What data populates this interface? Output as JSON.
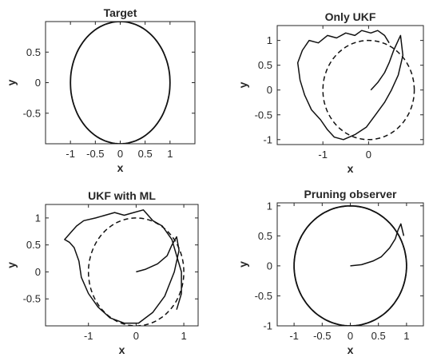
{
  "chart_data": [
    {
      "type": "line",
      "title": "Target",
      "xlabel": "x",
      "ylabel": "y",
      "xlim": [
        -1.5,
        1.5
      ],
      "ylim": [
        -1,
        1
      ],
      "xticks": [
        "-1",
        "-0.5",
        "0",
        "0.5",
        "1"
      ],
      "xtick_values": [
        -1,
        -0.5,
        0,
        0.5,
        1
      ],
      "yticks": [
        "0.5",
        "0",
        "-0.5"
      ],
      "ytick_values": [
        0.5,
        0,
        -0.5
      ],
      "series": [
        {
          "kind": "circle",
          "style": "solid",
          "cx": 0,
          "cy": 0,
          "r": 1
        }
      ]
    },
    {
      "type": "line",
      "title": "Only UKF",
      "xlabel": "x",
      "ylabel": "y",
      "xlim": [
        -2,
        1.2
      ],
      "ylim": [
        -1.1,
        1.3
      ],
      "xticks": [
        "-1",
        "0"
      ],
      "xtick_values": [
        -1,
        0
      ],
      "yticks": [
        "1",
        "0.5",
        "0",
        "-0.5",
        "-1"
      ],
      "ytick_values": [
        1,
        0.5,
        0,
        -0.5,
        -1
      ],
      "series": [
        {
          "kind": "circle",
          "style": "dashed",
          "cx": 0,
          "cy": 0,
          "r": 1
        },
        {
          "kind": "path",
          "style": "solid",
          "x": [
            0.05,
            0.2,
            0.35,
            0.45,
            0.55,
            0.65,
            0.7,
            0.75,
            0.65,
            0.5,
            0.35,
            0.15,
            -0.05,
            -0.3,
            -0.55,
            -0.75,
            -0.9,
            -1.05,
            -1.25,
            -1.4,
            -1.5,
            -1.55,
            -1.45,
            -1.3,
            -1.1,
            -0.9,
            -0.7,
            -0.5,
            -0.3,
            -0.15,
            0.05,
            0.2,
            0.35,
            0.45
          ],
          "y": [
            0,
            0.15,
            0.35,
            0.55,
            0.8,
            1.0,
            1.1,
            0.7,
            0.3,
            0.0,
            -0.25,
            -0.5,
            -0.75,
            -0.9,
            -1.0,
            -0.95,
            -0.8,
            -0.6,
            -0.4,
            -0.1,
            0.2,
            0.55,
            0.8,
            1.0,
            0.95,
            1.1,
            1.05,
            1.15,
            1.1,
            1.2,
            1.15,
            1.2,
            1.1,
            0.95
          ]
        }
      ]
    },
    {
      "type": "line",
      "title": "UKF with ML",
      "xlabel": "x",
      "ylabel": "y",
      "xlim": [
        -1.9,
        1.3
      ],
      "ylim": [
        -1,
        1.25
      ],
      "xticks": [
        "-1",
        "0",
        "1"
      ],
      "xtick_values": [
        -1,
        0,
        1
      ],
      "yticks": [
        "1",
        "0.5",
        "0",
        "-0.5"
      ],
      "ytick_values": [
        1,
        0.5,
        0,
        -0.5
      ],
      "series": [
        {
          "kind": "circle",
          "style": "dashed",
          "cx": 0,
          "cy": 0,
          "r": 1
        },
        {
          "kind": "path",
          "style": "solid",
          "x": [
            0,
            0.2,
            0.45,
            0.65,
            0.75,
            0.85,
            0.9,
            0.8,
            0.6,
            0.35,
            0.05,
            -0.25,
            -0.55,
            -0.8,
            -1.0,
            -1.15,
            -1.2,
            -1.3,
            -1.4,
            -1.5,
            -1.35,
            -1.25,
            -1.1,
            -0.85,
            -0.65,
            -0.45,
            -0.25,
            -0.05,
            0.15,
            0.35,
            0.55,
            0.75,
            0.85,
            0.95,
            0.95,
            0.85
          ],
          "y": [
            0,
            0.05,
            0.15,
            0.3,
            0.5,
            0.65,
            0.4,
            0.0,
            -0.45,
            -0.75,
            -0.95,
            -0.95,
            -0.85,
            -0.65,
            -0.4,
            -0.1,
            0.2,
            0.45,
            0.55,
            0.6,
            0.75,
            0.85,
            0.95,
            1.0,
            1.05,
            1.1,
            1.05,
            1.1,
            1.15,
            0.95,
            0.85,
            0.6,
            0.3,
            0.0,
            -0.4,
            -0.7
          ]
        }
      ]
    },
    {
      "type": "line",
      "title": "Pruning observer",
      "xlabel": "x",
      "ylabel": "y",
      "xlim": [
        -1.3,
        1.3
      ],
      "ylim": [
        -1,
        1.05
      ],
      "xticks": [
        "-1",
        "-0.5",
        "0",
        "0.5",
        "1"
      ],
      "xtick_values": [
        -1,
        -0.5,
        0,
        0.5,
        1
      ],
      "yticks": [
        "1",
        "0.5",
        "0",
        "-0.5",
        "-1"
      ],
      "ytick_values": [
        1,
        0.5,
        0,
        -0.5,
        -1
      ],
      "series": [
        {
          "kind": "circle",
          "style": "dashed",
          "cx": 0,
          "cy": 0,
          "r": 1
        },
        {
          "kind": "circle",
          "style": "solid",
          "cx": 0,
          "cy": 0,
          "r": 1
        },
        {
          "kind": "path",
          "style": "solid",
          "x": [
            0,
            0.2,
            0.4,
            0.55,
            0.7,
            0.8,
            0.85,
            0.9,
            0.95
          ],
          "y": [
            0,
            0.02,
            0.08,
            0.15,
            0.3,
            0.45,
            0.6,
            0.7,
            0.5
          ]
        }
      ]
    }
  ]
}
